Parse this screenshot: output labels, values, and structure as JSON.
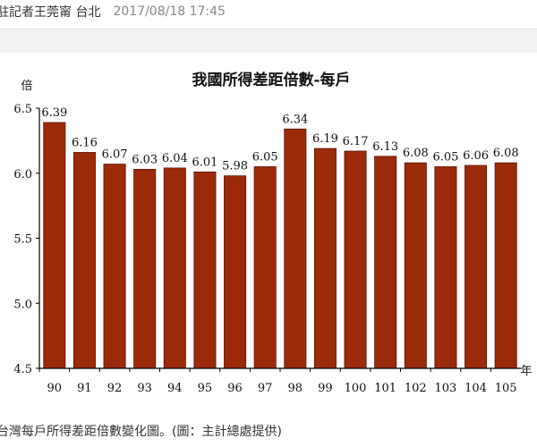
{
  "article": {
    "byline": "駐記者王莞甯 台北",
    "timestamp": "2017/08/18 17:45",
    "caption": "台灣每戶所得差距倍數變化圖。(圖：主計總處提供)"
  },
  "chart_data": {
    "type": "bar",
    "title": "我國所得差距倍數-每戶",
    "xlabel": "年",
    "ylabel": "倍",
    "categories": [
      "90",
      "91",
      "92",
      "93",
      "94",
      "95",
      "96",
      "97",
      "98",
      "99",
      "100",
      "101",
      "102",
      "103",
      "104",
      "105"
    ],
    "values": [
      6.39,
      6.16,
      6.07,
      6.03,
      6.04,
      6.01,
      5.98,
      6.05,
      6.34,
      6.19,
      6.17,
      6.13,
      6.08,
      6.05,
      6.06,
      6.08
    ],
    "value_labels": [
      "6.39",
      "6.16",
      "6.07",
      "6.03",
      "6.04",
      "6.01",
      "5.98",
      "6.05",
      "6.34",
      "6.19",
      "6.17",
      "6.13",
      "6.08",
      "6.05",
      "6.06",
      "6.08"
    ],
    "ylim": [
      4.5,
      6.5
    ],
    "yticks": [
      4.5,
      5.0,
      5.5,
      6.0,
      6.5
    ],
    "ytick_labels": [
      "4.5",
      "5.0",
      "5.5",
      "6.0",
      "6.5"
    ],
    "grid": false,
    "legend": "none",
    "colors": {
      "bar_fill": "#9b2a0b",
      "bar_stroke": "#5a1605",
      "axis": "#000000"
    }
  }
}
